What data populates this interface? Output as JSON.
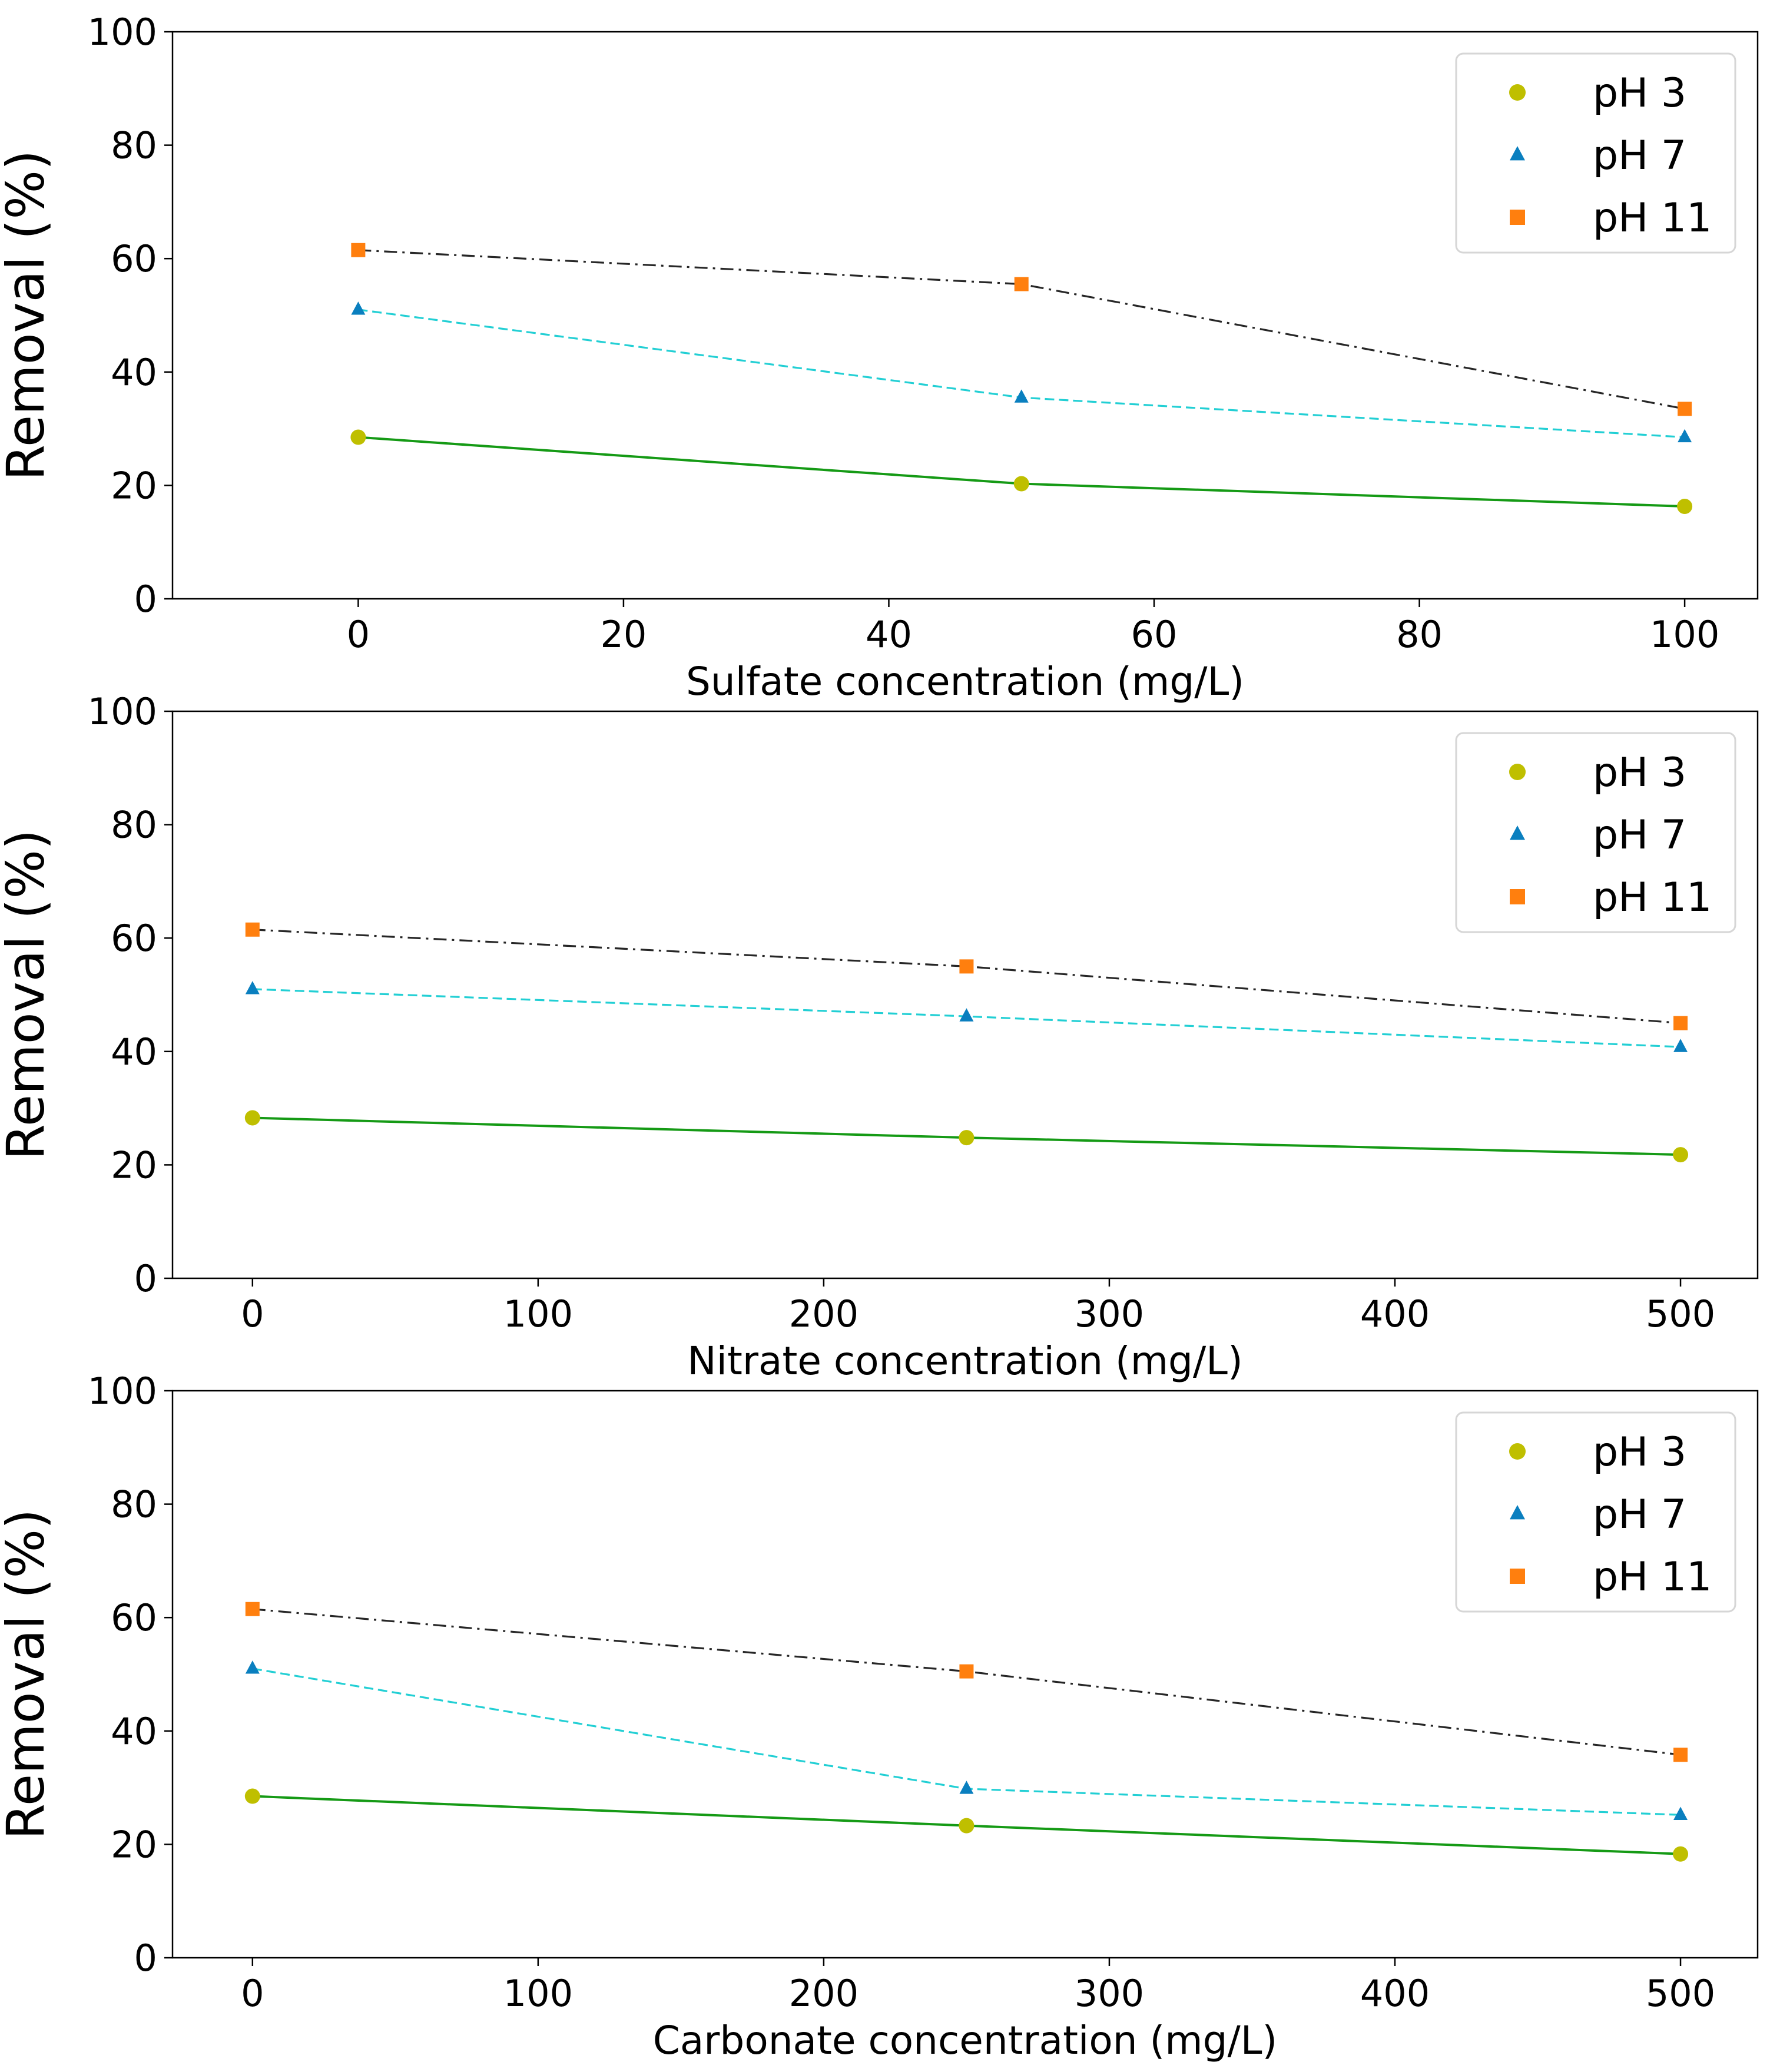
{
  "chart_data": [
    {
      "type": "line",
      "title": "",
      "xlabel": "Sulfate concentration (mg/L)",
      "ylabel": "Removal (%)",
      "xlim": [
        -14,
        105.5
      ],
      "ylim": [
        0,
        100
      ],
      "xticks": [
        0,
        20,
        40,
        60,
        80,
        100
      ],
      "yticks": [
        0,
        20,
        40,
        60,
        80,
        100
      ],
      "x": [
        0,
        50,
        100
      ],
      "series": [
        {
          "name": "pH 3",
          "values": [
            28.5,
            20.3,
            16.3
          ],
          "color": "#bfbf00",
          "line_color": "#159a15",
          "marker": "circle",
          "line_style": "solid"
        },
        {
          "name": "pH 7",
          "values": [
            51.0,
            35.5,
            28.5
          ],
          "color": "#0a7fbf",
          "line_color": "#22cfd4",
          "marker": "triangle",
          "line_style": "dashed"
        },
        {
          "name": "pH 11",
          "values": [
            61.5,
            55.5,
            33.5
          ],
          "color": "#ff7f0e",
          "line_color": "#262626",
          "marker": "square",
          "line_style": "dashdot"
        }
      ],
      "legend": "top-right",
      "grid": false
    },
    {
      "type": "line",
      "title": "",
      "xlabel": "Nitrate concentration (mg/L)",
      "ylabel": "Removal (%)",
      "xlim": [
        -28,
        527
      ],
      "ylim": [
        0,
        100
      ],
      "xticks": [
        0,
        100,
        200,
        300,
        400,
        500
      ],
      "yticks": [
        0,
        20,
        40,
        60,
        80,
        100
      ],
      "x": [
        0,
        250,
        500
      ],
      "series": [
        {
          "name": "pH 3",
          "values": [
            28.3,
            24.8,
            21.8
          ],
          "color": "#bfbf00",
          "line_color": "#159a15",
          "marker": "circle",
          "line_style": "solid"
        },
        {
          "name": "pH 7",
          "values": [
            51.0,
            46.2,
            40.8
          ],
          "color": "#0a7fbf",
          "line_color": "#22cfd4",
          "marker": "triangle",
          "line_style": "dashed"
        },
        {
          "name": "pH 11",
          "values": [
            61.5,
            55.0,
            45.0
          ],
          "color": "#ff7f0e",
          "line_color": "#262626",
          "marker": "square",
          "line_style": "dashdot"
        }
      ],
      "legend": "top-right",
      "grid": false
    },
    {
      "type": "line",
      "title": "",
      "xlabel": "Carbonate concentration (mg/L)",
      "ylabel": "Removal (%)",
      "xlim": [
        -28,
        527
      ],
      "ylim": [
        0,
        100
      ],
      "xticks": [
        0,
        100,
        200,
        300,
        400,
        500
      ],
      "yticks": [
        0,
        20,
        40,
        60,
        80,
        100
      ],
      "x": [
        0,
        250,
        500
      ],
      "series": [
        {
          "name": "pH 3",
          "values": [
            28.5,
            23.3,
            18.3
          ],
          "color": "#bfbf00",
          "line_color": "#159a15",
          "marker": "circle",
          "line_style": "solid"
        },
        {
          "name": "pH 7",
          "values": [
            51.0,
            29.8,
            25.2
          ],
          "color": "#0a7fbf",
          "line_color": "#22cfd4",
          "marker": "triangle",
          "line_style": "dashed"
        },
        {
          "name": "pH 11",
          "values": [
            61.5,
            50.5,
            35.8
          ],
          "color": "#ff7f0e",
          "line_color": "#262626",
          "marker": "square",
          "line_style": "dashdot"
        }
      ],
      "legend": "top-right",
      "grid": false
    }
  ]
}
